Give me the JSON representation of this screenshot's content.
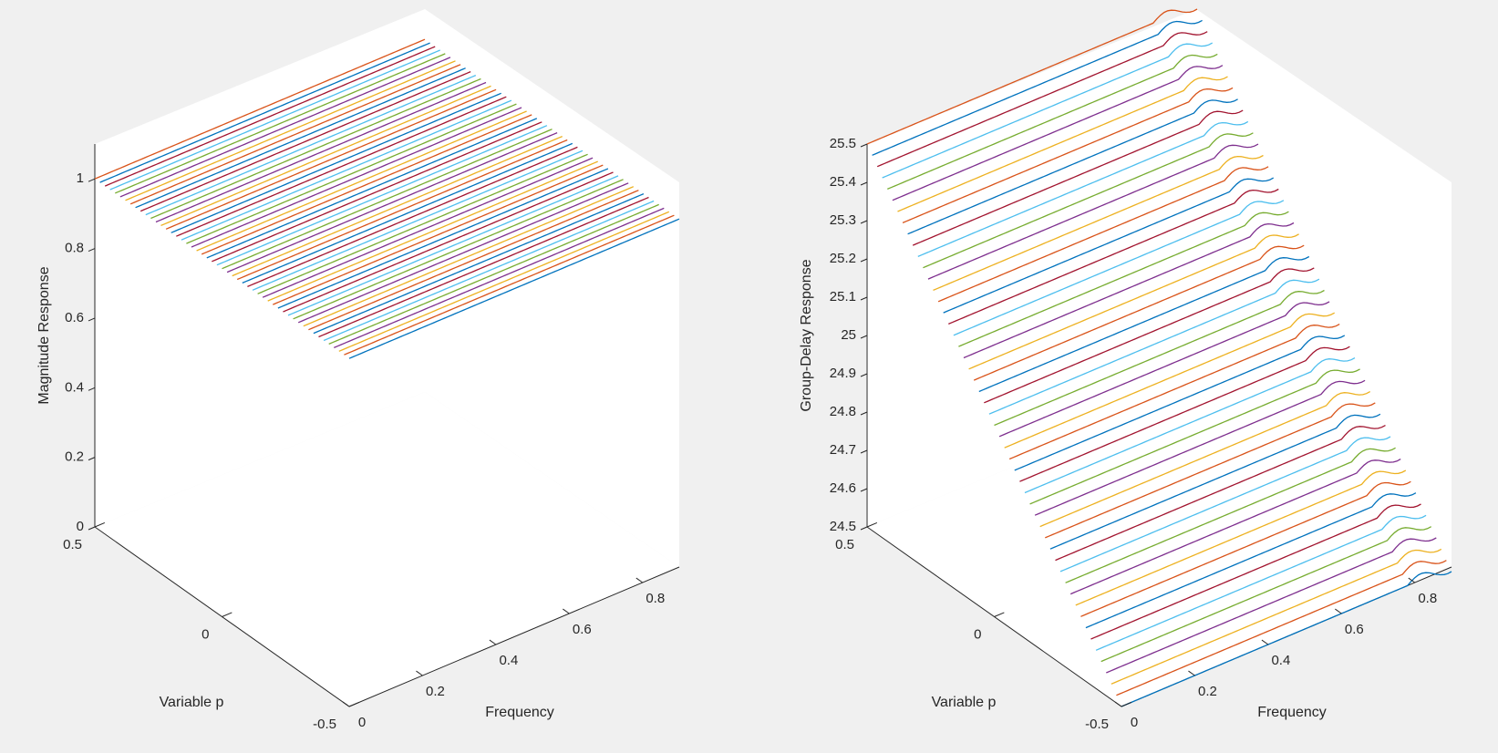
{
  "chart_data": [
    {
      "type": "line",
      "plot3d": true,
      "xlabel": "Frequency",
      "ylabel": "Variable p",
      "zlabel": "Magnitude Response",
      "xlim": [
        0,
        0.9
      ],
      "ylim": [
        -0.5,
        0.5
      ],
      "zlim": [
        0,
        1.1
      ],
      "xticks": [
        0,
        0.2,
        0.4,
        0.6,
        0.8
      ],
      "xtick_labels": [
        "0",
        "0.2",
        "0.4",
        "0.6",
        "0.8"
      ],
      "yticks": [
        -0.5,
        0,
        0.5
      ],
      "ytick_labels": [
        "-0.5",
        "0",
        "0.5"
      ],
      "zticks": [
        0,
        0.2,
        0.4,
        0.6,
        0.8,
        1
      ],
      "ztick_labels": [
        "0",
        "0.2",
        "0.4",
        "0.6",
        "0.8",
        "1"
      ],
      "series_count": 51,
      "p_values": "-0.5 to 0.5, step 0.02",
      "frequency_range": [
        0,
        0.9
      ],
      "response": "constant magnitude 1 across all frequencies for every p"
    },
    {
      "type": "line",
      "plot3d": true,
      "xlabel": "Frequency",
      "ylabel": "Variable p",
      "zlabel": "Group-Delay Response",
      "xlim": [
        0,
        0.9
      ],
      "ylim": [
        -0.5,
        0.5
      ],
      "zlim": [
        24.5,
        25.5
      ],
      "xticks": [
        0,
        0.2,
        0.4,
        0.6,
        0.8
      ],
      "xtick_labels": [
        "0",
        "0.2",
        "0.4",
        "0.6",
        "0.8"
      ],
      "yticks": [
        -0.5,
        0,
        0.5
      ],
      "ytick_labels": [
        "-0.5",
        "0",
        "0.5"
      ],
      "zticks": [
        24.5,
        24.6,
        24.7,
        24.8,
        24.9,
        25,
        25.1,
        25.2,
        25.3,
        25.4,
        25.5
      ],
      "ztick_labels": [
        "24.5",
        "24.6",
        "24.7",
        "24.8",
        "24.9",
        "25",
        "25.1",
        "25.2",
        "25.3",
        "25.4",
        "25.5"
      ],
      "series_count": 51,
      "p_values": "-0.5 to 0.5, step 0.02",
      "frequency_range": [
        0,
        0.9
      ],
      "response": "group delay = 25 + p, nearly flat with a small ripple near the band edge"
    }
  ],
  "colors": [
    "#0072bd",
    "#d95319",
    "#edb120",
    "#7e2f8e",
    "#77ac30",
    "#4dbeee",
    "#a2142f"
  ]
}
